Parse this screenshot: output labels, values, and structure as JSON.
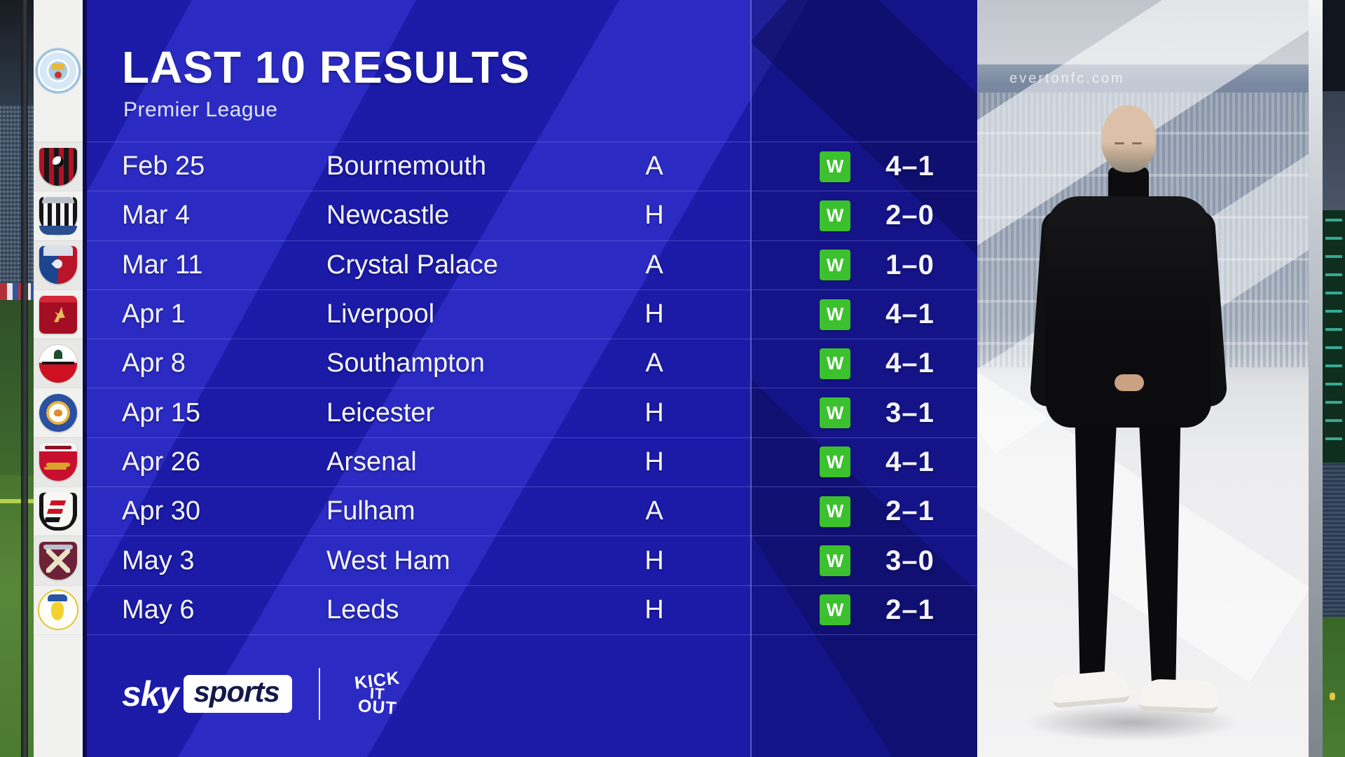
{
  "header": {
    "title": "LAST 10 RESULTS",
    "subtitle": "Premier League"
  },
  "table": {
    "results": [
      {
        "date": "Feb 25",
        "opponent": "Bournemouth",
        "venue": "A",
        "outcome": "W",
        "score": "4–1",
        "team": "bournemouth"
      },
      {
        "date": "Mar 4",
        "opponent": "Newcastle",
        "venue": "H",
        "outcome": "W",
        "score": "2–0",
        "team": "newcastle"
      },
      {
        "date": "Mar 11",
        "opponent": "Crystal Palace",
        "venue": "A",
        "outcome": "W",
        "score": "1–0",
        "team": "crystal-palace"
      },
      {
        "date": "Apr 1",
        "opponent": "Liverpool",
        "venue": "H",
        "outcome": "W",
        "score": "4–1",
        "team": "liverpool"
      },
      {
        "date": "Apr 8",
        "opponent": "Southampton",
        "venue": "A",
        "outcome": "W",
        "score": "4–1",
        "team": "southampton"
      },
      {
        "date": "Apr 15",
        "opponent": "Leicester",
        "venue": "H",
        "outcome": "W",
        "score": "3–1",
        "team": "leicester"
      },
      {
        "date": "Apr 26",
        "opponent": "Arsenal",
        "venue": "H",
        "outcome": "W",
        "score": "4–1",
        "team": "arsenal"
      },
      {
        "date": "Apr 30",
        "opponent": "Fulham",
        "venue": "A",
        "outcome": "W",
        "score": "2–1",
        "team": "fulham"
      },
      {
        "date": "May 3",
        "opponent": "West Ham",
        "venue": "H",
        "outcome": "W",
        "score": "3–0",
        "team": "west-ham"
      },
      {
        "date": "May 6",
        "opponent": "Leeds",
        "venue": "H",
        "outcome": "W",
        "score": "2–1",
        "team": "leeds"
      }
    ]
  },
  "footer": {
    "sky_label": "sky",
    "sports_label": "sports",
    "kick_it_out": [
      "KICK",
      "IT",
      "OUT"
    ]
  },
  "backdrop": {
    "banner_text": "evertonfc.com"
  },
  "colors": {
    "panel_blue": "#1b1ba8",
    "stripe_blue": "#2e2ec8",
    "win_green": "#3bc12d",
    "sidebar_bg": "#f1f1ef"
  }
}
